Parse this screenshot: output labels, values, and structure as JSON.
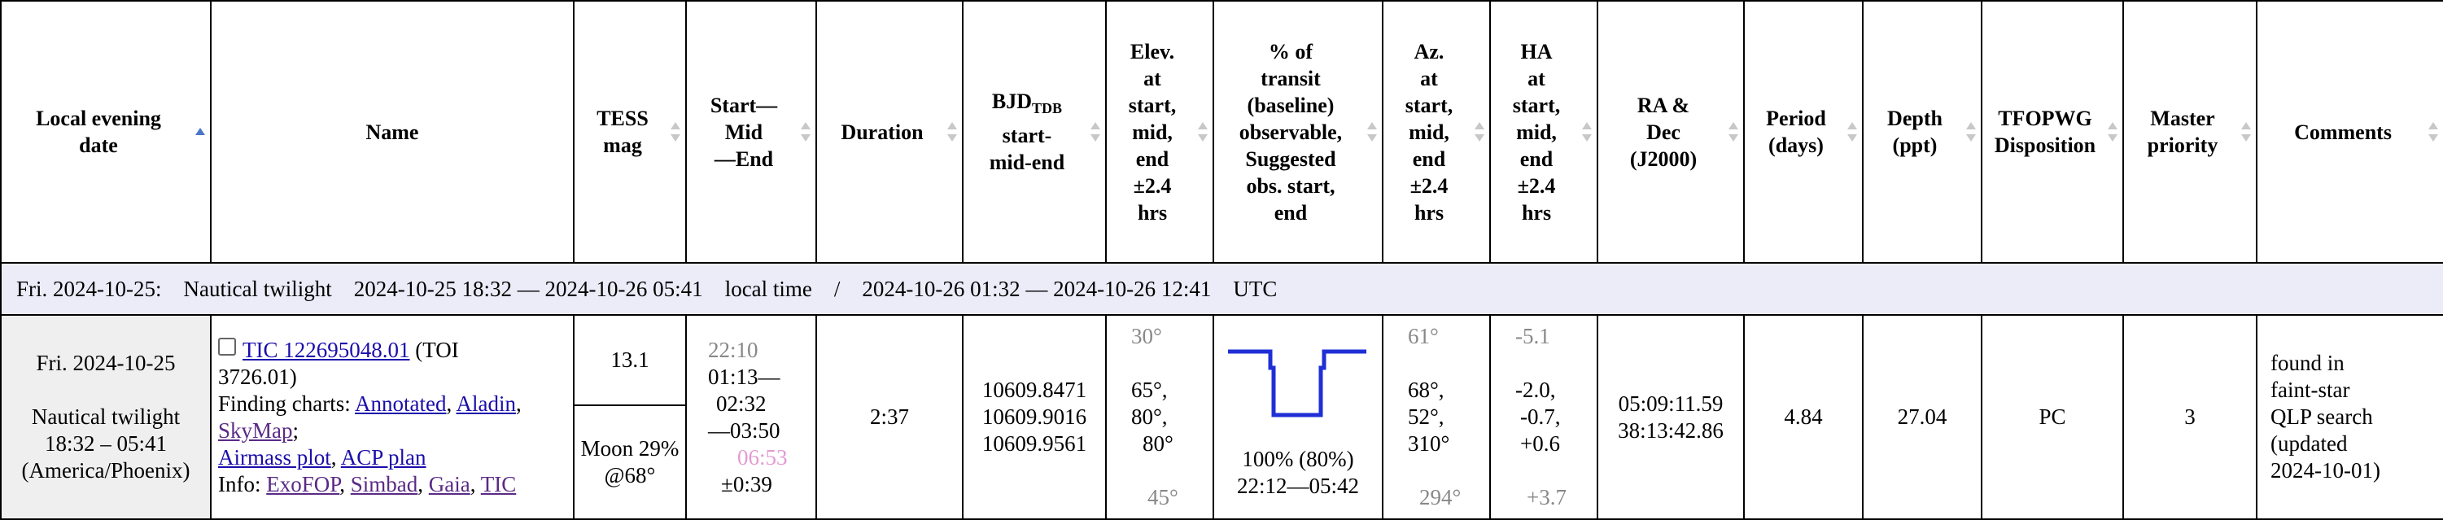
{
  "columns": [
    {
      "label_lines": [
        "Local evening",
        "date"
      ],
      "sort": "ascending"
    },
    {
      "label_lines": [
        "Name"
      ],
      "sort": "none"
    },
    {
      "label_lines": [
        "TESS",
        "mag"
      ],
      "sort": "both"
    },
    {
      "label_lines": [
        "Start—",
        "Mid",
        "—End"
      ],
      "sort": "both"
    },
    {
      "label_lines": [
        "Duration"
      ],
      "sort": "both"
    },
    {
      "label_lines": [
        "BJD",
        "TDB",
        "start-",
        "mid-end"
      ],
      "sort": "both"
    },
    {
      "label_lines": [
        "Elev.",
        "at",
        "start,",
        "mid,",
        "end",
        "±2.4",
        "hrs"
      ],
      "sort": "both"
    },
    {
      "label_lines": [
        "% of",
        "transit",
        "(baseline)",
        "observable,",
        "Suggested",
        "obs. start,",
        "end"
      ],
      "sort": "both"
    },
    {
      "label_lines": [
        "Az.",
        "at",
        "start,",
        "mid,",
        "end",
        "±2.4",
        "hrs"
      ],
      "sort": "both"
    },
    {
      "label_lines": [
        "HA",
        "at",
        "start,",
        "mid,",
        "end",
        "±2.4",
        "hrs"
      ],
      "sort": "both"
    },
    {
      "label_lines": [
        "RA &",
        "Dec",
        "(J2000)"
      ],
      "sort": "both"
    },
    {
      "label_lines": [
        "Period",
        "(days)"
      ],
      "sort": "both"
    },
    {
      "label_lines": [
        "Depth",
        "(ppt)"
      ],
      "sort": "both"
    },
    {
      "label_lines": [
        "TFOPWG",
        "Disposition"
      ],
      "sort": "both"
    },
    {
      "label_lines": [
        "Master",
        "priority"
      ],
      "sort": "both"
    },
    {
      "label_lines": [
        "Comments"
      ],
      "sort": "both"
    }
  ],
  "summary": {
    "day": "Fri. 2024-10-25:",
    "twilight": "Nautical twilight",
    "local_range": "2024-10-25 18:32 — 2024-10-26 05:41",
    "local_label": "local time",
    "separator": "/",
    "utc_range": "2024-10-26 01:32 — 2024-10-26 12:41",
    "utc_label": "UTC"
  },
  "row": {
    "date": {
      "day": "Fri. 2024-10-25",
      "twilight": "Nautical twilight",
      "times": "18:32 – 05:41",
      "tz": "(America/Phoenix)"
    },
    "name": {
      "tic_link": "TIC 122695048.01",
      "toi_open": "(TOI",
      "toi_close": "3726.01)",
      "finding_label": "Finding charts:",
      "link_annotated": "Annotated",
      "link_aladin": "Aladin",
      "link_skymap": "SkyMap",
      "link_airmass": "Airmass plot",
      "link_acp": "ACP plan",
      "info_label": "Info:",
      "link_exofop": "ExoFOP",
      "link_simbad": "Simbad",
      "link_gaia": "Gaia",
      "link_tic": "TIC"
    },
    "tess_mag": "13.1",
    "moon": {
      "line1": "Moon 29%",
      "line2": "@68°"
    },
    "times": {
      "before": "22:10",
      "start_mid": "01:13—",
      "mid": "02:32",
      "end": "—03:50",
      "after": "06:53",
      "uncertainty": "±0:39"
    },
    "duration": "2:37",
    "bjd": {
      "start": "10609.8471",
      "mid": "10609.9016",
      "end": "10609.9561"
    },
    "elev": {
      "before": "30°",
      "line1": "65°,",
      "line2": "80°,",
      "line3": "80°",
      "after": "45°"
    },
    "transit": {
      "fraction_observable_percent": 100,
      "baseline_observable_percent": 80,
      "text": "100% (80%)",
      "suggested": "22:12—05:42"
    },
    "az": {
      "before": "61°",
      "line1": "68°,",
      "line2": "52°,",
      "line3": "310°",
      "after": "294°"
    },
    "ha": {
      "before": "-5.1",
      "line1": "-2.0,",
      "line2": "-0.7,",
      "line3": "+0.6",
      "after": "+3.7"
    },
    "radec": {
      "ra": "05:09:11.59",
      "dec": "38:13:42.86"
    },
    "period": "4.84",
    "depth": "27.04",
    "disposition": "PC",
    "priority": "3",
    "comments": [
      "found in",
      "faint-star",
      "QLP search",
      "(updated",
      "2024-10-01)"
    ]
  },
  "colors": {
    "link": "#1a0dab",
    "visited_link": "#5a2a86",
    "transit_plot": "#1f2fd6",
    "summary_bg": "#ececf9",
    "date_bg": "#efefef",
    "muted_text": "#888888",
    "post_transit_time": "#e39ad0",
    "sort_active": "#4a78c8"
  }
}
